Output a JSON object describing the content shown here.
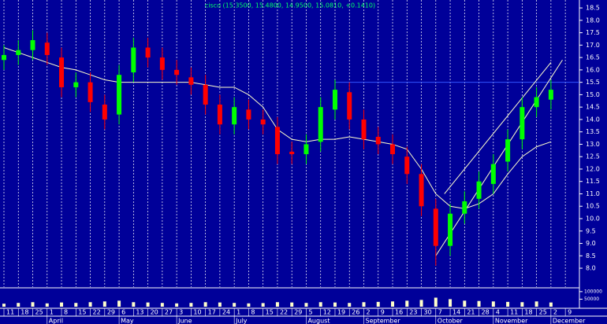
{
  "chart_data": {
    "type": "candlestick",
    "title": "cisco (15.3500, 15.4800, 14.9500, 15.0810, +0.1410)",
    "categories": [
      "11",
      "18",
      "25",
      "1",
      "8",
      "15",
      "22",
      "29",
      "6",
      "13",
      "20",
      "27",
      "3",
      "10",
      "17",
      "24",
      "1",
      "8",
      "15",
      "22",
      "29",
      "5",
      "12",
      "19",
      "26",
      "2",
      "9",
      "16",
      "23",
      "30",
      "7",
      "14",
      "21",
      "28",
      "4",
      "11",
      "18",
      "25",
      "2",
      "9"
    ],
    "months": [
      "April",
      "May",
      "June",
      "July",
      "August",
      "September",
      "October",
      "November",
      "December"
    ],
    "open": [
      16.4,
      16.6,
      16.8,
      17.1,
      16.5,
      15.3,
      15.5,
      14.6,
      14.2,
      15.9,
      16.9,
      16.5,
      16.0,
      15.7,
      15.4,
      14.6,
      13.8,
      14.4,
      14.0,
      13.7,
      12.7,
      12.6,
      13.1,
      14.4,
      15.1,
      14.0,
      13.3,
      13.0,
      12.5,
      11.8,
      10.4,
      8.9,
      10.2,
      10.8,
      11.4,
      12.3,
      13.2,
      14.5,
      14.8,
      null
    ],
    "high": [
      17.0,
      17.2,
      17.6,
      17.5,
      16.9,
      15.9,
      15.9,
      15.0,
      16.2,
      17.3,
      17.3,
      16.9,
      16.4,
      16.1,
      15.8,
      15.0,
      14.9,
      14.8,
      14.4,
      14.1,
      13.1,
      13.4,
      14.9,
      15.6,
      15.5,
      14.4,
      13.7,
      13.4,
      12.9,
      12.2,
      10.8,
      10.6,
      11.1,
      11.9,
      12.6,
      13.6,
      14.9,
      15.3,
      15.6,
      null
    ],
    "low": [
      16.0,
      16.2,
      16.4,
      16.2,
      14.9,
      14.9,
      14.3,
      13.6,
      13.8,
      15.5,
      16.1,
      15.6,
      15.4,
      15.0,
      14.2,
      13.4,
      13.4,
      13.6,
      13.4,
      12.2,
      12.2,
      12.2,
      12.7,
      14.0,
      13.6,
      12.8,
      12.6,
      12.2,
      11.4,
      10.1,
      8.1,
      8.5,
      9.8,
      10.4,
      11.0,
      11.9,
      12.8,
      14.1,
      14.4,
      null
    ],
    "close": [
      16.6,
      16.8,
      17.2,
      16.6,
      15.3,
      15.5,
      14.7,
      14.0,
      15.8,
      16.9,
      16.5,
      16.0,
      15.8,
      15.4,
      14.6,
      13.8,
      14.5,
      14.0,
      13.8,
      12.6,
      12.6,
      13.0,
      14.5,
      15.2,
      14.0,
      13.2,
      13.0,
      12.6,
      11.8,
      10.5,
      8.9,
      10.2,
      10.7,
      11.5,
      12.2,
      13.2,
      14.5,
      14.9,
      15.2,
      null
    ],
    "moving_average": [
      16.9,
      16.7,
      16.5,
      16.3,
      16.1,
      16.0,
      15.8,
      15.6,
      15.5,
      15.5,
      15.5,
      15.5,
      15.5,
      15.5,
      15.4,
      15.3,
      15.3,
      15.0,
      14.5,
      13.6,
      13.2,
      13.1,
      13.2,
      13.2,
      13.3,
      13.2,
      13.1,
      13.0,
      12.8,
      12.0,
      11.0,
      10.5,
      10.4,
      10.6,
      11.0,
      11.8,
      12.5,
      12.9,
      13.1,
      null
    ],
    "volume": [
      20000,
      25000,
      30000,
      22000,
      28000,
      25000,
      30000,
      35000,
      40000,
      30000,
      28000,
      25000,
      22000,
      25000,
      30000,
      28000,
      25000,
      22000,
      24000,
      30000,
      28000,
      25000,
      30000,
      28000,
      25000,
      30000,
      32000,
      35000,
      40000,
      45000,
      60000,
      50000,
      40000,
      38000,
      35000,
      32000,
      30000,
      35000,
      28000,
      null
    ],
    "trendlines": [
      {
        "x": [
          30,
          38.8
        ],
        "y": [
          8.5,
          16.4
        ]
      },
      {
        "x": [
          30.6,
          38.0
        ],
        "y": [
          11.0,
          16.3
        ]
      }
    ],
    "hline": {
      "value": 15.5,
      "from": 23
    },
    "up_color": "#00ff00",
    "down_color": "#ff0000",
    "line_color": "#ffffcc",
    "hline_color": "#3355ff",
    "ylim": [
      7.24,
      18.82
    ],
    "yticks": [
      18.5,
      {
        "value": 18,
        "label": "18.0"
      },
      17.5,
      {
        "value": 17,
        "label": "17.0"
      },
      16.5,
      {
        "value": 16,
        "label": "16.0"
      },
      15.5,
      {
        "value": 15,
        "label": "15.0"
      },
      14.5,
      {
        "value": 14,
        "label": "14.0"
      },
      13.5,
      {
        "value": 13,
        "label": "13.0"
      },
      12.5,
      {
        "value": 12,
        "label": "12.0"
      },
      11.5,
      {
        "value": 11,
        "label": "11.0"
      },
      10.5,
      {
        "value": 10,
        "label": "10.0"
      },
      9.5,
      {
        "value": 9,
        "label": "9.0"
      },
      8.5,
      {
        "value": 8,
        "label": "8.0"
      }
    ],
    "volume_ylim": [
      0,
      120000
    ],
    "volume_yticks": [
      50000,
      100000
    ],
    "grid": true
  }
}
